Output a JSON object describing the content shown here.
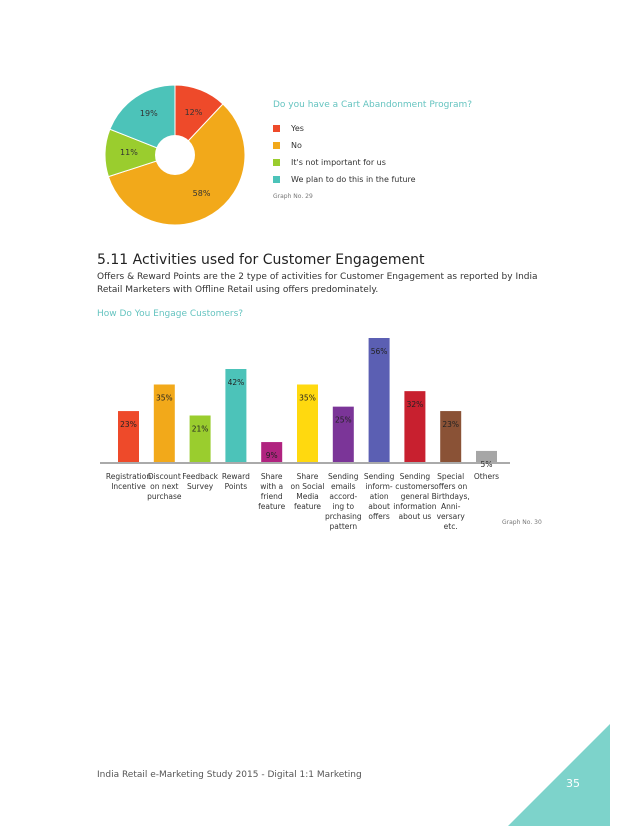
{
  "pie_section": {
    "legend_title": "Do you have a Cart Abandonment Program?",
    "graph_no": "Graph No. 29"
  },
  "section": {
    "heading": "5.11 Activities used for Customer Engagement",
    "body": "Offers & Reward Points are the 2 type of activities for Customer Engagement as reported by India Retail Marketers with Offline Retail using offers predominately."
  },
  "bar_section": {
    "title": "How Do You Engage Customers?",
    "graph_no": "Graph No. 30"
  },
  "footer": {
    "text": "India Retail e-Marketing Study 2015 - Digital 1:1 Marketing",
    "page_number": "35",
    "corner_color": "#7dd3cb"
  },
  "chart_data": [
    {
      "type": "pie",
      "title": "Do you have a Cart Abandonment Program?",
      "slices": [
        {
          "label": "Yes",
          "value": 12,
          "value_label": "12%",
          "color": "#ee4a2a"
        },
        {
          "label": "No",
          "value": 58,
          "value_label": "58%",
          "color": "#f2a91a"
        },
        {
          "label": "It's not important for us",
          "value": 11,
          "value_label": "11%",
          "color": "#9acd2e"
        },
        {
          "label": "We plan to do this in the future",
          "value": 19,
          "value_label": "19%",
          "color": "#4cc3b9"
        }
      ]
    },
    {
      "type": "bar",
      "title": "How Do You Engage Customers?",
      "ylim": [
        0,
        56
      ],
      "categories": [
        [
          "Registration",
          "Incentive"
        ],
        [
          "Discount",
          "on next",
          "purchase"
        ],
        [
          "Feedback",
          "Survey"
        ],
        [
          "Reward",
          "Points"
        ],
        [
          "Share",
          "with a",
          "friend",
          "feature"
        ],
        [
          "Share",
          "on Social",
          "Media",
          "feature"
        ],
        [
          "Sending",
          "emails",
          "accord-",
          "ing to",
          "prchasing",
          "pattern"
        ],
        [
          "Sending",
          "inform-",
          "ation",
          "about",
          "offers"
        ],
        [
          "Sending",
          "customers",
          "general",
          "information",
          "about us"
        ],
        [
          "Special",
          "offers on",
          "Birthdays,",
          "Anni-",
          "versary",
          "etc."
        ],
        [
          "Others"
        ]
      ],
      "values": [
        23,
        35,
        21,
        42,
        9,
        35,
        25,
        56,
        32,
        23,
        5
      ],
      "value_labels": [
        "23%",
        "35%",
        "21%",
        "42%",
        "9%",
        "35%",
        "25%",
        "56%",
        "32%",
        "23%",
        "5%"
      ],
      "colors": [
        "#ee4a2a",
        "#f2a91a",
        "#9acd2e",
        "#4cc3b9",
        "#b0237f",
        "#ffd90f",
        "#7b3598",
        "#5b5fb3",
        "#c8202f",
        "#8a5236",
        "#a6a6a6"
      ]
    }
  ]
}
